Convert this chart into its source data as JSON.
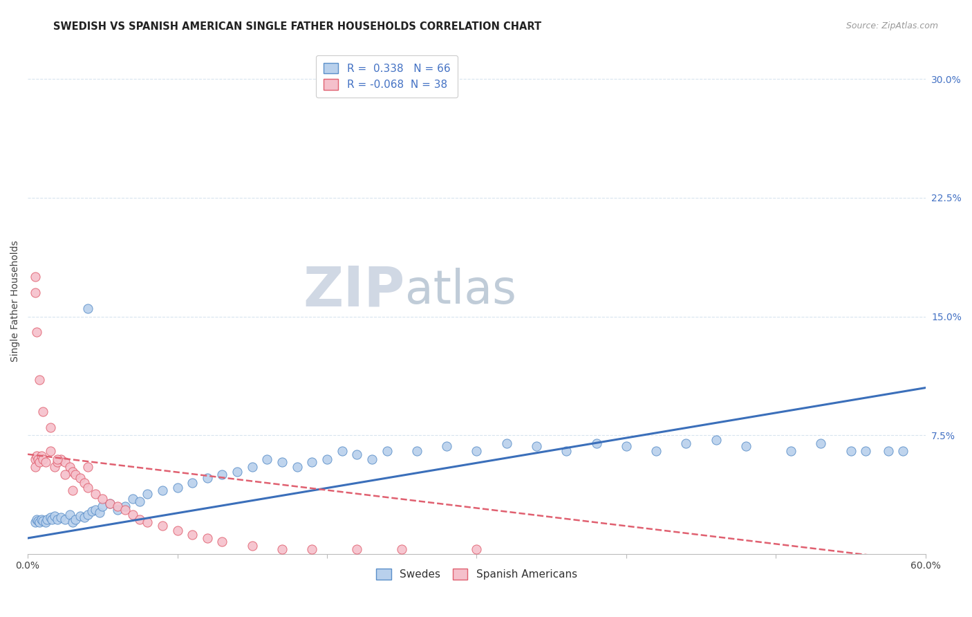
{
  "title": "SWEDISH VS SPANISH AMERICAN SINGLE FATHER HOUSEHOLDS CORRELATION CHART",
  "source": "Source: ZipAtlas.com",
  "ylabel": "Single Father Households",
  "xlim": [
    0.0,
    0.6
  ],
  "ylim": [
    0.0,
    0.32
  ],
  "xtick_positions": [
    0.0,
    0.1,
    0.2,
    0.3,
    0.4,
    0.5,
    0.6
  ],
  "xtick_labels": [
    "0.0%",
    "",
    "",
    "",
    "",
    "",
    "60.0%"
  ],
  "ytick_positions_right": [
    0.3,
    0.225,
    0.15,
    0.075
  ],
  "ytick_labels_right": [
    "30.0%",
    "22.5%",
    "15.0%",
    "7.5%"
  ],
  "blue_color": "#B8D0EC",
  "pink_color": "#F5C0CB",
  "blue_edge_color": "#5B8FC9",
  "pink_edge_color": "#E06070",
  "blue_line_color": "#3B6FBA",
  "pink_line_color": "#E06070",
  "grid_color": "#D8E4EE",
  "background_color": "#FFFFFF",
  "watermark_zip_color": "#D0DCE8",
  "watermark_atlas_color": "#C0CCD8",
  "title_color": "#222222",
  "source_color": "#999999",
  "right_axis_color": "#4472C4",
  "blue_R": 0.338,
  "blue_N": 66,
  "pink_R": -0.068,
  "pink_N": 38,
  "blue_x": [
    0.005,
    0.006,
    0.007,
    0.008,
    0.009,
    0.01,
    0.012,
    0.013,
    0.015,
    0.016,
    0.018,
    0.02,
    0.022,
    0.025,
    0.028,
    0.03,
    0.032,
    0.035,
    0.038,
    0.04,
    0.043,
    0.045,
    0.048,
    0.05,
    0.055,
    0.06,
    0.065,
    0.07,
    0.075,
    0.08,
    0.09,
    0.1,
    0.11,
    0.12,
    0.13,
    0.14,
    0.15,
    0.16,
    0.17,
    0.18,
    0.19,
    0.2,
    0.21,
    0.22,
    0.23,
    0.24,
    0.26,
    0.28,
    0.3,
    0.32,
    0.34,
    0.36,
    0.38,
    0.4,
    0.42,
    0.44,
    0.46,
    0.48,
    0.51,
    0.53,
    0.55,
    0.56,
    0.575,
    0.585,
    0.21,
    0.04
  ],
  "blue_y": [
    0.02,
    0.022,
    0.021,
    0.02,
    0.022,
    0.021,
    0.02,
    0.022,
    0.023,
    0.022,
    0.024,
    0.022,
    0.023,
    0.022,
    0.025,
    0.02,
    0.022,
    0.024,
    0.023,
    0.025,
    0.027,
    0.028,
    0.026,
    0.03,
    0.032,
    0.028,
    0.03,
    0.035,
    0.033,
    0.038,
    0.04,
    0.042,
    0.045,
    0.048,
    0.05,
    0.052,
    0.055,
    0.06,
    0.058,
    0.055,
    0.058,
    0.06,
    0.065,
    0.063,
    0.06,
    0.065,
    0.065,
    0.068,
    0.065,
    0.07,
    0.068,
    0.065,
    0.07,
    0.068,
    0.065,
    0.07,
    0.072,
    0.068,
    0.065,
    0.07,
    0.065,
    0.065,
    0.065,
    0.065,
    0.295,
    0.155
  ],
  "pink_x": [
    0.005,
    0.005,
    0.006,
    0.007,
    0.008,
    0.009,
    0.01,
    0.012,
    0.015,
    0.018,
    0.02,
    0.022,
    0.025,
    0.028,
    0.03,
    0.032,
    0.035,
    0.038,
    0.04,
    0.045,
    0.05,
    0.055,
    0.06,
    0.065,
    0.07,
    0.075,
    0.08,
    0.09,
    0.1,
    0.11,
    0.12,
    0.13,
    0.15,
    0.17,
    0.19,
    0.22,
    0.25,
    0.3
  ],
  "pink_y": [
    0.06,
    0.055,
    0.062,
    0.06,
    0.058,
    0.062,
    0.06,
    0.058,
    0.065,
    0.055,
    0.058,
    0.06,
    0.058,
    0.055,
    0.052,
    0.05,
    0.048,
    0.045,
    0.042,
    0.038,
    0.035,
    0.032,
    0.03,
    0.028,
    0.025,
    0.022,
    0.02,
    0.018,
    0.015,
    0.012,
    0.01,
    0.008,
    0.005,
    0.003,
    0.003,
    0.003,
    0.003,
    0.003
  ],
  "pink_extra_x": [
    0.005,
    0.005,
    0.006,
    0.008,
    0.01,
    0.015,
    0.02,
    0.025,
    0.03,
    0.04
  ],
  "pink_extra_y": [
    0.175,
    0.165,
    0.14,
    0.11,
    0.09,
    0.08,
    0.06,
    0.05,
    0.04,
    0.055
  ]
}
